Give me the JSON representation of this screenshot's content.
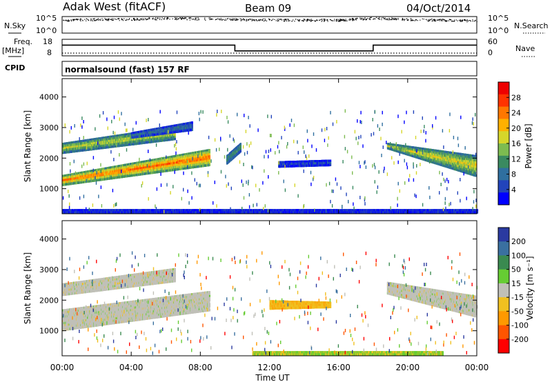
{
  "header": {
    "station": "Adak West (fitACF)",
    "beam": "Beam 09",
    "date": "04/Oct/2014"
  },
  "sky_panel": {
    "left_label": "N.Sky",
    "right_label": "N.Search",
    "left_ticks": [
      "10^5",
      "10^0"
    ],
    "right_ticks": [
      "10^5",
      "10^0"
    ]
  },
  "freq_panel": {
    "left_label_1": "Freq.",
    "left_label_2": "[MHz]",
    "left_ticks": [
      "18",
      "8"
    ],
    "right_label": "Nave",
    "right_ticks": [
      "60",
      "0"
    ]
  },
  "cpid_panel": {
    "label": "CPID",
    "text": "normalsound (fast) 157 RF"
  },
  "x_axis": {
    "label": "Time UT",
    "ticks": [
      "00:00",
      "04:00",
      "08:00",
      "12:00",
      "16:00",
      "20:00",
      "00:00"
    ]
  },
  "power_panel": {
    "ylabel": "Slant Range [km]",
    "yticks": [
      "1000",
      "2000",
      "3000",
      "4000"
    ],
    "colorbar_label": "Power [dB]",
    "colorbar_ticks": [
      "4",
      "8",
      "12",
      "16",
      "20",
      "24",
      "28"
    ],
    "colors": [
      "#0000ff",
      "#2244bb",
      "#2f6f9f",
      "#3a8a60",
      "#7dbb50",
      "#d6d62a",
      "#ffb000",
      "#ff7700",
      "#ff3300",
      "#ee0000"
    ]
  },
  "velocity_panel": {
    "ylabel": "Slant Range [km]",
    "yticks": [
      "1000",
      "2000",
      "3000",
      "4000"
    ],
    "colorbar_label": "Velocity [m s⁻¹]",
    "colorbar_ticks": [
      "200",
      "100",
      "50",
      "15",
      "-15",
      "-50",
      "-100",
      "-200"
    ],
    "colors": [
      "#2a3aa0",
      "#3a70a0",
      "#3a8a50",
      "#66cc33",
      "#c0c0b8",
      "#f0c020",
      "#ff9900",
      "#ff5500",
      "#ff0000"
    ]
  },
  "chart_data": [
    {
      "type": "line",
      "name": "N.Sky / N.Search",
      "x_range_hours": [
        0,
        24
      ],
      "ylim_log10": [
        0,
        5
      ],
      "x": [
        0,
        2,
        4,
        6,
        8,
        10,
        12,
        14,
        16,
        18,
        20,
        22,
        24
      ],
      "series": [
        {
          "values": [
            4,
            4.2,
            4.3,
            4.5,
            4.4,
            4.2,
            4.1,
            4.0,
            4.0,
            4.6,
            4.2,
            4.0,
            3.8
          ]
        }
      ]
    },
    {
      "type": "line",
      "name": "Frequency",
      "ylim": [
        8,
        18
      ],
      "x_hours": [
        0,
        10,
        10,
        18,
        18,
        24
      ],
      "series": [
        {
          "values": [
            14.5,
            14.5,
            11,
            11,
            14.5,
            14.5
          ]
        }
      ],
      "nave_level": 6
    },
    {
      "type": "heatmap",
      "name": "Power",
      "xlabel": "Time UT",
      "ylabel": "Slant Range [km]",
      "xlim_hours": [
        0,
        24
      ],
      "ylim_km": [
        180,
        4600
      ],
      "zlim_db": [
        0,
        32
      ],
      "regions": [
        {
          "t": [
            0.0,
            8.5
          ],
          "r0": [
            1100,
            1750
          ],
          "r1": [
            1450,
            2300
          ],
          "db": 27
        },
        {
          "t": [
            0.0,
            6.5
          ],
          "r0": [
            2150,
            2600
          ],
          "r1": [
            2500,
            3050
          ],
          "db": 19
        },
        {
          "t": [
            4.0,
            7.5
          ],
          "r0": [
            2650,
            2900
          ],
          "r1": [
            2850,
            3200
          ],
          "db": 10
        },
        {
          "t": [
            9.5,
            10.3
          ],
          "r0": [
            1800,
            2200
          ],
          "r1": [
            2100,
            2500
          ],
          "db": 14
        },
        {
          "t": [
            12.5,
            15.5
          ],
          "r0": [
            1700,
            1750
          ],
          "r1": [
            1900,
            1950
          ],
          "db": 6
        },
        {
          "t": [
            18.8,
            23.9
          ],
          "r0": [
            2300,
            1400
          ],
          "r1": [
            2500,
            2100
          ],
          "db": 20
        },
        {
          "t": [
            0.0,
            24.0
          ],
          "r0": [
            200,
            200
          ],
          "r1": [
            330,
            330
          ],
          "db": 7
        }
      ]
    },
    {
      "type": "heatmap",
      "name": "Velocity",
      "xlabel": "Time UT",
      "ylabel": "Slant Range [km]",
      "xlim_hours": [
        0,
        24
      ],
      "ylim_km": [
        180,
        4600
      ],
      "zlim_ms": [
        -250,
        250
      ],
      "regions": [
        {
          "t": [
            0.0,
            8.5
          ],
          "r0": [
            1000,
            1650
          ],
          "r1": [
            1700,
            2300
          ],
          "v": 0
        },
        {
          "t": [
            0.0,
            6.5
          ],
          "r0": [
            2150,
            2600
          ],
          "r1": [
            2550,
            3050
          ],
          "v": 0
        },
        {
          "t": [
            12.0,
            15.5
          ],
          "r0": [
            1700,
            1750
          ],
          "r1": [
            2000,
            1950
          ],
          "v": -40
        },
        {
          "t": [
            18.8,
            23.9
          ],
          "r0": [
            2200,
            1450
          ],
          "r1": [
            2600,
            2150
          ],
          "v": 0
        },
        {
          "t": [
            11.0,
            22.0
          ],
          "r0": [
            200,
            200
          ],
          "r1": [
            330,
            330
          ],
          "v": 40
        }
      ]
    }
  ]
}
